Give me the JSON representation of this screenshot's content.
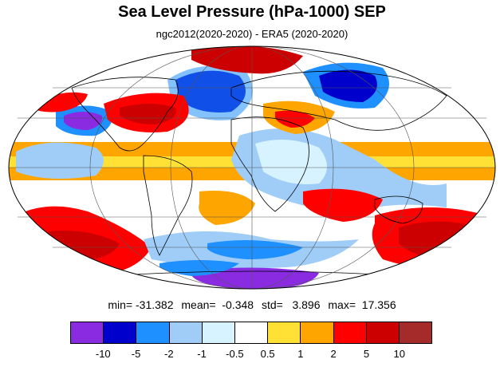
{
  "title": "Sea Level Pressure (hPa-1000) SEP",
  "subtitle": "ngc2012(2020-2020) - ERA5 (2020-2020)",
  "stats": {
    "min": "min= -31.382",
    "mean": "mean=  -0.348",
    "std": "std=   3.896",
    "max": "max=  17.356"
  },
  "colorbar": {
    "colors": [
      "#8a2be2",
      "#0000cd",
      "#1e90ff",
      "#9fcdf7",
      "#d6f3ff",
      "#ffffff",
      "#ffe135",
      "#ffa500",
      "#ff0000",
      "#cc0000",
      "#a52a2a"
    ],
    "labels": [
      "-10",
      "-5",
      "-2",
      "-1",
      "-0.5",
      "0.5",
      "1",
      "2",
      "5",
      "10"
    ]
  },
  "map": {
    "projection": "mollweide",
    "central_longitude": 0,
    "grid_interval_lon": 60,
    "grid_interval_lat": 30
  }
}
